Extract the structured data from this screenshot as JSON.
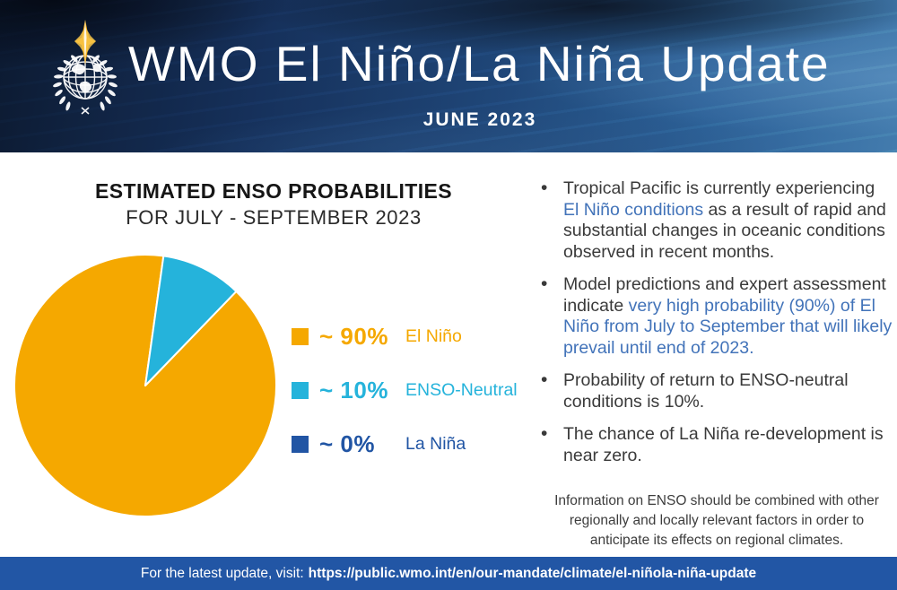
{
  "header": {
    "title": "WMO El Niño/La Niña Update",
    "subtitle": "JUNE 2023",
    "logo": "wmo-logo"
  },
  "left_panel": {
    "heading": "ESTIMATED ENSO PROBABILITIES",
    "subheading": "FOR JULY - SEPTEMBER 2023"
  },
  "chart_data": {
    "type": "pie",
    "title": "ESTIMATED ENSO PROBABILITIES FOR JULY - SEPTEMBER 2023",
    "start_angle_deg": 44,
    "legend_position": "right",
    "slices": [
      {
        "label": "El Niño",
        "value": 90,
        "display": "~ 90%",
        "color": "#F5A800"
      },
      {
        "label": "ENSO-Neutral",
        "value": 10,
        "display": "~ 10%",
        "color": "#25B3DB"
      },
      {
        "label": "La Niña",
        "value": 0,
        "display": "~ 0%",
        "color": "#2155A4"
      }
    ]
  },
  "bullets": [
    {
      "segments": [
        {
          "text": "Tropical Pacific is currently experiencing ",
          "style": "dark"
        },
        {
          "text": "El Niño conditions",
          "style": "blue"
        },
        {
          "text": " as a result of rapid and substantial changes in oceanic conditions observed in recent months.",
          "style": "dark"
        }
      ]
    },
    {
      "segments": [
        {
          "text": "Model predictions and expert assessment indicate ",
          "style": "dark"
        },
        {
          "text": "very high probability (90%) of El Niño from July to September that will likely prevail until end of 2023.",
          "style": "blue"
        }
      ]
    },
    {
      "segments": [
        {
          "text": "Probability of return to ENSO-neutral conditions is 10%.",
          "style": "dark"
        }
      ]
    },
    {
      "segments": [
        {
          "text": "The chance of La Niña re-development is near zero.",
          "style": "dark"
        }
      ]
    }
  ],
  "note": {
    "text": "Information on ENSO should be combined with other regionally and locally relevant factors in order to anticipate its effects on regional climates."
  },
  "footer": {
    "prefix": "For the latest update, visit:",
    "url": "https://public.wmo.int/en/our-mandate/climate/el-niñola-niña-update"
  },
  "colors": {
    "orange": "#F5A800",
    "light_blue": "#25B3DB",
    "dark_blue": "#2155A4",
    "text_blue": "#4273B9",
    "body_text": "#3A3A3A",
    "footer_bg": "#2256A5"
  }
}
